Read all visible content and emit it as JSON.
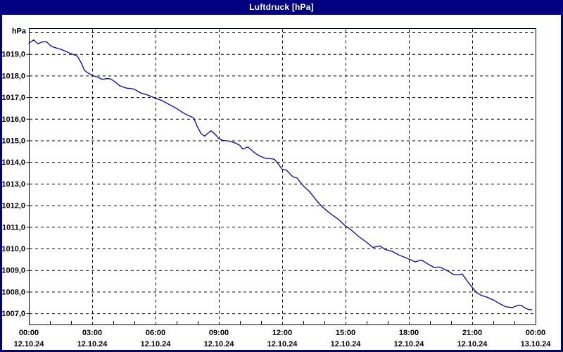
{
  "window": {
    "title": "Luftdruck [hPa]"
  },
  "colors": {
    "title_bar": "#000080",
    "title_text": "#ffffff",
    "frame": "#000080",
    "panel": "#ffffff",
    "plot_border": "#000000",
    "grid": "#000000",
    "axis_text": "#000000",
    "line": "#0000c0"
  },
  "chart_data": {
    "type": "line",
    "title": "Luftdruck [hPa]",
    "ylabel": "hPa",
    "xlabel": "",
    "unit_label": "hPa",
    "grid": true,
    "legend_position": "none",
    "ylim": [
      1006.5,
      1020.2
    ],
    "xlim_hours": [
      0,
      24
    ],
    "y_gridline_values": [
      1020,
      1019,
      1018,
      1017,
      1016,
      1015,
      1014,
      1013,
      1012,
      1011,
      1010,
      1009,
      1008,
      1007
    ],
    "y_ticks": [
      {
        "value": 1019,
        "label": "1019,0"
      },
      {
        "value": 1018,
        "label": "1018,0"
      },
      {
        "value": 1017,
        "label": "1017,0"
      },
      {
        "value": 1016,
        "label": "1016,0"
      },
      {
        "value": 1015,
        "label": "1015,0"
      },
      {
        "value": 1014,
        "label": "1014,0"
      },
      {
        "value": 1013,
        "label": "1013,0"
      },
      {
        "value": 1012,
        "label": "1012,0"
      },
      {
        "value": 1011,
        "label": "1011,0"
      },
      {
        "value": 1010,
        "label": "1010,0"
      },
      {
        "value": 1009,
        "label": "1009,0"
      },
      {
        "value": 1008,
        "label": "1008,0"
      },
      {
        "value": 1007,
        "label": "1007,0"
      }
    ],
    "x_ticks": [
      {
        "hour": 0,
        "time": "00:00",
        "date": "12.10.24"
      },
      {
        "hour": 3,
        "time": "03:00",
        "date": "12.10.24"
      },
      {
        "hour": 6,
        "time": "06:00",
        "date": "12.10.24"
      },
      {
        "hour": 9,
        "time": "09:00",
        "date": "12.10.24"
      },
      {
        "hour": 12,
        "time": "12:00",
        "date": "12.10.24"
      },
      {
        "hour": 15,
        "time": "15:00",
        "date": "12.10.24"
      },
      {
        "hour": 18,
        "time": "18:00",
        "date": "12.10.24"
      },
      {
        "hour": 21,
        "time": "21:00",
        "date": "12.10.24"
      },
      {
        "hour": 24,
        "time": "00:00",
        "date": "13.10.24"
      }
    ],
    "minor_tick_every_hours": 1,
    "series": [
      {
        "name": "Luftdruck",
        "color": "#0000c0",
        "points": [
          [
            0.0,
            1019.5
          ],
          [
            0.23,
            1019.65
          ],
          [
            0.43,
            1019.47
          ],
          [
            0.6,
            1019.55
          ],
          [
            0.83,
            1019.57
          ],
          [
            1.07,
            1019.35
          ],
          [
            1.3,
            1019.28
          ],
          [
            1.57,
            1019.2
          ],
          [
            1.97,
            1019.03
          ],
          [
            2.3,
            1018.9
          ],
          [
            2.5,
            1018.55
          ],
          [
            2.63,
            1018.25
          ],
          [
            2.8,
            1018.12
          ],
          [
            3.0,
            1018.02
          ],
          [
            3.3,
            1017.91
          ],
          [
            3.47,
            1017.83
          ],
          [
            3.7,
            1017.86
          ],
          [
            3.87,
            1017.85
          ],
          [
            4.1,
            1017.7
          ],
          [
            4.3,
            1017.53
          ],
          [
            4.63,
            1017.42
          ],
          [
            4.97,
            1017.38
          ],
          [
            5.3,
            1017.2
          ],
          [
            5.63,
            1017.1
          ],
          [
            6.0,
            1016.95
          ],
          [
            6.3,
            1016.85
          ],
          [
            6.63,
            1016.67
          ],
          [
            7.0,
            1016.48
          ],
          [
            7.3,
            1016.28
          ],
          [
            7.5,
            1016.18
          ],
          [
            7.8,
            1016.05
          ],
          [
            8.0,
            1015.6
          ],
          [
            8.17,
            1015.3
          ],
          [
            8.33,
            1015.2
          ],
          [
            8.5,
            1015.35
          ],
          [
            8.63,
            1015.45
          ],
          [
            8.83,
            1015.28
          ],
          [
            9.0,
            1015.08
          ],
          [
            9.2,
            1015.0
          ],
          [
            9.5,
            1014.97
          ],
          [
            9.8,
            1014.87
          ],
          [
            10.0,
            1014.77
          ],
          [
            10.13,
            1014.6
          ],
          [
            10.37,
            1014.7
          ],
          [
            10.57,
            1014.53
          ],
          [
            10.73,
            1014.4
          ],
          [
            11.0,
            1014.25
          ],
          [
            11.2,
            1014.18
          ],
          [
            11.5,
            1014.15
          ],
          [
            11.63,
            1014.13
          ],
          [
            11.8,
            1013.93
          ],
          [
            12.0,
            1013.66
          ],
          [
            12.2,
            1013.63
          ],
          [
            12.5,
            1013.32
          ],
          [
            12.7,
            1013.26
          ],
          [
            13.0,
            1012.9
          ],
          [
            13.3,
            1012.63
          ],
          [
            13.6,
            1012.25
          ],
          [
            13.87,
            1011.95
          ],
          [
            14.3,
            1011.6
          ],
          [
            14.63,
            1011.37
          ],
          [
            15.0,
            1011.04
          ],
          [
            15.17,
            1010.93
          ],
          [
            15.3,
            1010.83
          ],
          [
            15.63,
            1010.55
          ],
          [
            15.93,
            1010.34
          ],
          [
            16.3,
            1010.05
          ],
          [
            16.63,
            1010.12
          ],
          [
            16.87,
            1009.96
          ],
          [
            17.2,
            1009.87
          ],
          [
            17.53,
            1009.7
          ],
          [
            18.0,
            1009.51
          ],
          [
            18.3,
            1009.38
          ],
          [
            18.6,
            1009.47
          ],
          [
            18.9,
            1009.28
          ],
          [
            19.2,
            1009.12
          ],
          [
            19.43,
            1009.15
          ],
          [
            19.6,
            1009.08
          ],
          [
            19.9,
            1008.93
          ],
          [
            20.1,
            1008.8
          ],
          [
            20.3,
            1008.78
          ],
          [
            20.53,
            1008.82
          ],
          [
            20.8,
            1008.45
          ],
          [
            21.0,
            1008.2
          ],
          [
            21.2,
            1007.97
          ],
          [
            21.43,
            1007.83
          ],
          [
            21.7,
            1007.75
          ],
          [
            22.0,
            1007.62
          ],
          [
            22.3,
            1007.45
          ],
          [
            22.6,
            1007.3
          ],
          [
            22.9,
            1007.27
          ],
          [
            23.2,
            1007.38
          ],
          [
            23.35,
            1007.36
          ],
          [
            23.5,
            1007.24
          ],
          [
            23.7,
            1007.17
          ],
          [
            23.83,
            1007.17
          ]
        ]
      }
    ]
  }
}
